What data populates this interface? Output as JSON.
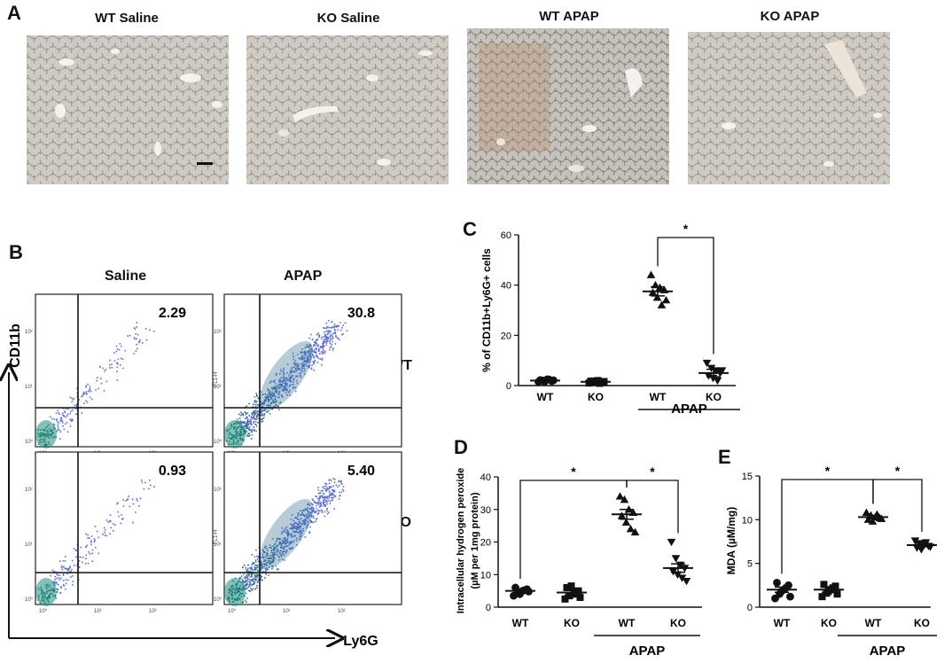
{
  "panels": {
    "A": {
      "letter": "A",
      "images": [
        {
          "title": "WT Saline"
        },
        {
          "title": "KO Saline"
        },
        {
          "title": "WT APAP"
        },
        {
          "title": "KO APAP"
        }
      ]
    },
    "B": {
      "letter": "B",
      "col_headers": [
        "Saline",
        "APAP"
      ],
      "row_labels": [
        "WT",
        "KO"
      ],
      "y_marker": "CD11b",
      "x_marker": "Ly6G",
      "plots": [
        {
          "row": "WT",
          "col": "Saline",
          "percent": "2.29"
        },
        {
          "row": "WT",
          "col": "APAP",
          "percent": "30.8"
        },
        {
          "row": "KO",
          "col": "Saline",
          "percent": "0.93"
        },
        {
          "row": "KO",
          "col": "APAP",
          "percent": "5.40"
        }
      ],
      "log_ticks": [
        "10⁰",
        "10¹",
        "10²"
      ],
      "axis_small": "FL1-H"
    },
    "C": {
      "letter": "C"
    },
    "D": {
      "letter": "D"
    },
    "E": {
      "letter": "E"
    }
  },
  "chart_data": [
    {
      "panel": "C",
      "type": "scatter",
      "title": "",
      "ylabel": "% of CD11b+Ly6G+ cells",
      "ylim": [
        0,
        60
      ],
      "yticks": [
        "0",
        "20",
        "40",
        "60"
      ],
      "categories": [
        "WT",
        "KO",
        "WT",
        "KO"
      ],
      "group_label": "APAP",
      "group_span": [
        2,
        3
      ],
      "means": [
        2,
        1.5,
        37.5,
        5
      ],
      "sems": [
        0.4,
        0.4,
        1.8,
        1.5
      ],
      "points": [
        [
          1.5,
          2.0,
          2.5,
          1.8,
          2.2,
          1.6,
          2.4,
          2.1
        ],
        [
          1.0,
          1.5,
          2.0,
          1.2,
          1.8,
          1.4,
          0.9,
          1.6
        ],
        [
          44,
          40,
          39,
          38,
          37,
          35,
          32,
          34
        ],
        [
          9,
          7,
          6,
          5,
          4,
          3,
          2,
          6
        ]
      ],
      "markers": [
        "circle",
        "square",
        "triangle-up",
        "triangle-down"
      ],
      "significance": [
        {
          "from": 2,
          "to": 3,
          "label": "*"
        }
      ]
    },
    {
      "panel": "D",
      "type": "scatter",
      "title": "",
      "ylabel": "Intracellular hydrogen peroxide",
      "ylabel2": "(µM per 1mg protein)",
      "ylim": [
        0,
        40
      ],
      "yticks": [
        "0",
        "10",
        "20",
        "30",
        "40"
      ],
      "categories": [
        "WT",
        "KO",
        "WT",
        "KO"
      ],
      "group_label": "APAP",
      "group_span": [
        2,
        3
      ],
      "means": [
        5,
        4.5,
        28.5,
        12
      ],
      "sems": [
        0.6,
        0.7,
        1.5,
        1.3
      ],
      "points": [
        [
          3.5,
          4.5,
          5.0,
          5.5,
          6.0,
          4.0,
          5.2,
          4.8
        ],
        [
          2.5,
          3.5,
          4.5,
          5.0,
          6.0,
          6.5,
          4.0,
          3.0
        ],
        [
          34,
          33,
          30,
          29,
          28,
          26,
          24,
          23
        ],
        [
          20,
          15,
          13,
          12,
          11,
          10,
          9,
          8
        ]
      ],
      "markers": [
        "circle",
        "square",
        "triangle-up",
        "triangle-down"
      ],
      "significance": [
        {
          "from": 0,
          "to": 2,
          "label": "*"
        },
        {
          "from": 2,
          "to": 3,
          "label": "*"
        }
      ]
    },
    {
      "panel": "E",
      "type": "scatter",
      "title": "",
      "ylabel": "MDA (µM/mg)",
      "ylim": [
        0,
        15
      ],
      "yticks": [
        "0",
        "5",
        "10",
        "15"
      ],
      "categories": [
        "WT",
        "KO",
        "WT",
        "KO"
      ],
      "group_label": "APAP",
      "group_span": [
        2,
        3
      ],
      "means": [
        2,
        2,
        10.3,
        7.1
      ],
      "sems": [
        0.3,
        0.3,
        0.2,
        0.2
      ],
      "points": [
        [
          1.0,
          1.5,
          2.0,
          2.5,
          2.8,
          1.8,
          2.2,
          1.2
        ],
        [
          1.2,
          1.6,
          2.0,
          2.4,
          2.6,
          1.8,
          2.2,
          1.5
        ],
        [
          10.8,
          10.5,
          10.3,
          10.2,
          10.0,
          9.8,
          10.6,
          10.1
        ],
        [
          7.6,
          7.3,
          7.1,
          7.0,
          6.8,
          6.6,
          7.4,
          6.9
        ]
      ],
      "markers": [
        "circle",
        "square",
        "triangle-up",
        "triangle-down"
      ],
      "significance": [
        {
          "from": 0,
          "to": 2,
          "label": "*"
        },
        {
          "from": 2,
          "to": 3,
          "label": "*"
        }
      ]
    }
  ]
}
